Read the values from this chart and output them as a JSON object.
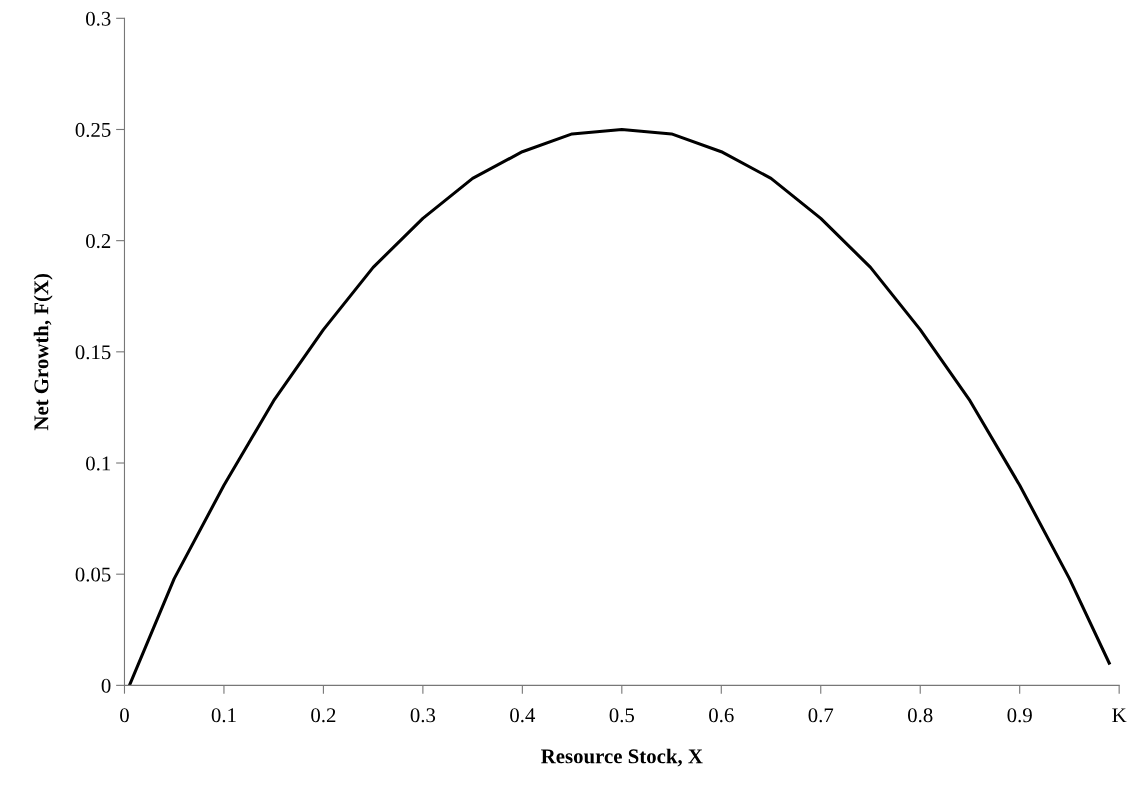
{
  "chart_data": {
    "type": "line",
    "xlabel": "Resource Stock, X",
    "ylabel": "Net Growth, F(X)",
    "x": [
      0.005,
      0.05,
      0.1,
      0.15,
      0.2,
      0.25,
      0.3,
      0.35,
      0.4,
      0.45,
      0.5,
      0.55,
      0.6,
      0.65,
      0.7,
      0.75,
      0.8,
      0.85,
      0.9,
      0.95,
      0.99
    ],
    "series": [
      {
        "color": "#000000",
        "values": [
          0,
          0.048,
          0.09,
          0.128,
          0.16,
          0.188,
          0.21,
          0.228,
          0.24,
          0.248,
          0.25,
          0.248,
          0.24,
          0.228,
          0.21,
          0.188,
          0.16,
          0.128,
          0.09,
          0.048,
          0.01
        ]
      }
    ],
    "xlim": [
      0,
      1
    ],
    "ylim": [
      0,
      0.3
    ],
    "xticks": [
      0,
      0.1,
      0.2,
      0.3,
      0.4,
      0.5,
      0.6,
      0.7,
      0.8,
      0.9,
      {
        "value": 1,
        "label": "K"
      }
    ],
    "yticks": [
      0,
      0.05,
      0.1,
      0.15,
      0.2,
      0.25,
      0.3
    ],
    "grid": false,
    "legend": false,
    "marker": "none",
    "line_style": "solid"
  }
}
